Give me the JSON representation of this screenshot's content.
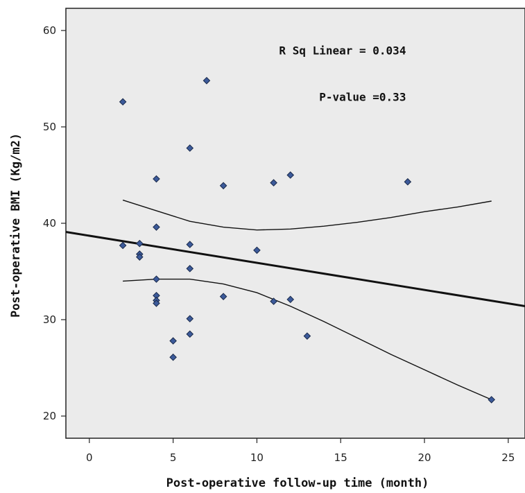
{
  "chart_data": {
    "type": "scatter",
    "title": "",
    "xlabel": "Post-operative follow-up time (month)",
    "ylabel": "Post-operative BMI (Kg/m2)",
    "xlim": [
      -1.4,
      26
    ],
    "ylim": [
      17.7,
      62.3
    ],
    "x_ticks": [
      0,
      5,
      10,
      15,
      20,
      25
    ],
    "y_ticks": [
      20,
      30,
      40,
      50,
      60
    ],
    "grid": false,
    "series": [
      {
        "points": [
          [
            2,
            52.6
          ],
          [
            2,
            37.7
          ],
          [
            3,
            37.9
          ],
          [
            3,
            36.8
          ],
          [
            3,
            36.5
          ],
          [
            4,
            44.6
          ],
          [
            4,
            39.6
          ],
          [
            4,
            34.2
          ],
          [
            4,
            32.5
          ],
          [
            4,
            32.0
          ],
          [
            4,
            31.7
          ],
          [
            5,
            27.8
          ],
          [
            5,
            26.1
          ],
          [
            6,
            47.8
          ],
          [
            6,
            37.8
          ],
          [
            6,
            35.3
          ],
          [
            6,
            30.1
          ],
          [
            6,
            28.5
          ],
          [
            7,
            54.8
          ],
          [
            8,
            43.9
          ],
          [
            8,
            32.4
          ],
          [
            10,
            37.2
          ],
          [
            11,
            44.2
          ],
          [
            11,
            31.9
          ],
          [
            12,
            45.0
          ],
          [
            12,
            32.1
          ],
          [
            13,
            28.3
          ],
          [
            19,
            44.3
          ],
          [
            24,
            21.7
          ]
        ]
      }
    ],
    "fit_line": {
      "kind": "linear",
      "points": [
        [
          -1.4,
          39.1
        ],
        [
          26,
          31.4
        ]
      ]
    },
    "confidence_band": {
      "upper": [
        [
          2,
          42.4
        ],
        [
          4,
          41.3
        ],
        [
          6,
          40.2
        ],
        [
          8,
          39.6
        ],
        [
          10,
          39.3
        ],
        [
          12,
          39.4
        ],
        [
          14,
          39.7
        ],
        [
          16,
          40.1
        ],
        [
          18,
          40.6
        ],
        [
          20,
          41.2
        ],
        [
          22,
          41.7
        ],
        [
          24,
          42.3
        ]
      ],
      "lower": [
        [
          2,
          34.0
        ],
        [
          4,
          34.2
        ],
        [
          6,
          34.2
        ],
        [
          8,
          33.7
        ],
        [
          10,
          32.8
        ],
        [
          12,
          31.4
        ],
        [
          14,
          29.8
        ],
        [
          16,
          28.1
        ],
        [
          18,
          26.4
        ],
        [
          20,
          24.8
        ],
        [
          22,
          23.2
        ],
        [
          24,
          21.7
        ]
      ]
    },
    "annotations": [
      {
        "text": "R Sq Linear = 0.034",
        "x": 18.9,
        "y": 57.5
      },
      {
        "text": "P-value =0.33",
        "x": 18.9,
        "y": 52.7
      }
    ],
    "colors": {
      "plot_background": "#ebebeb",
      "marker_fill": "#3c5a9a",
      "marker_edge": "#1a2a4a",
      "line": "#111111"
    }
  }
}
